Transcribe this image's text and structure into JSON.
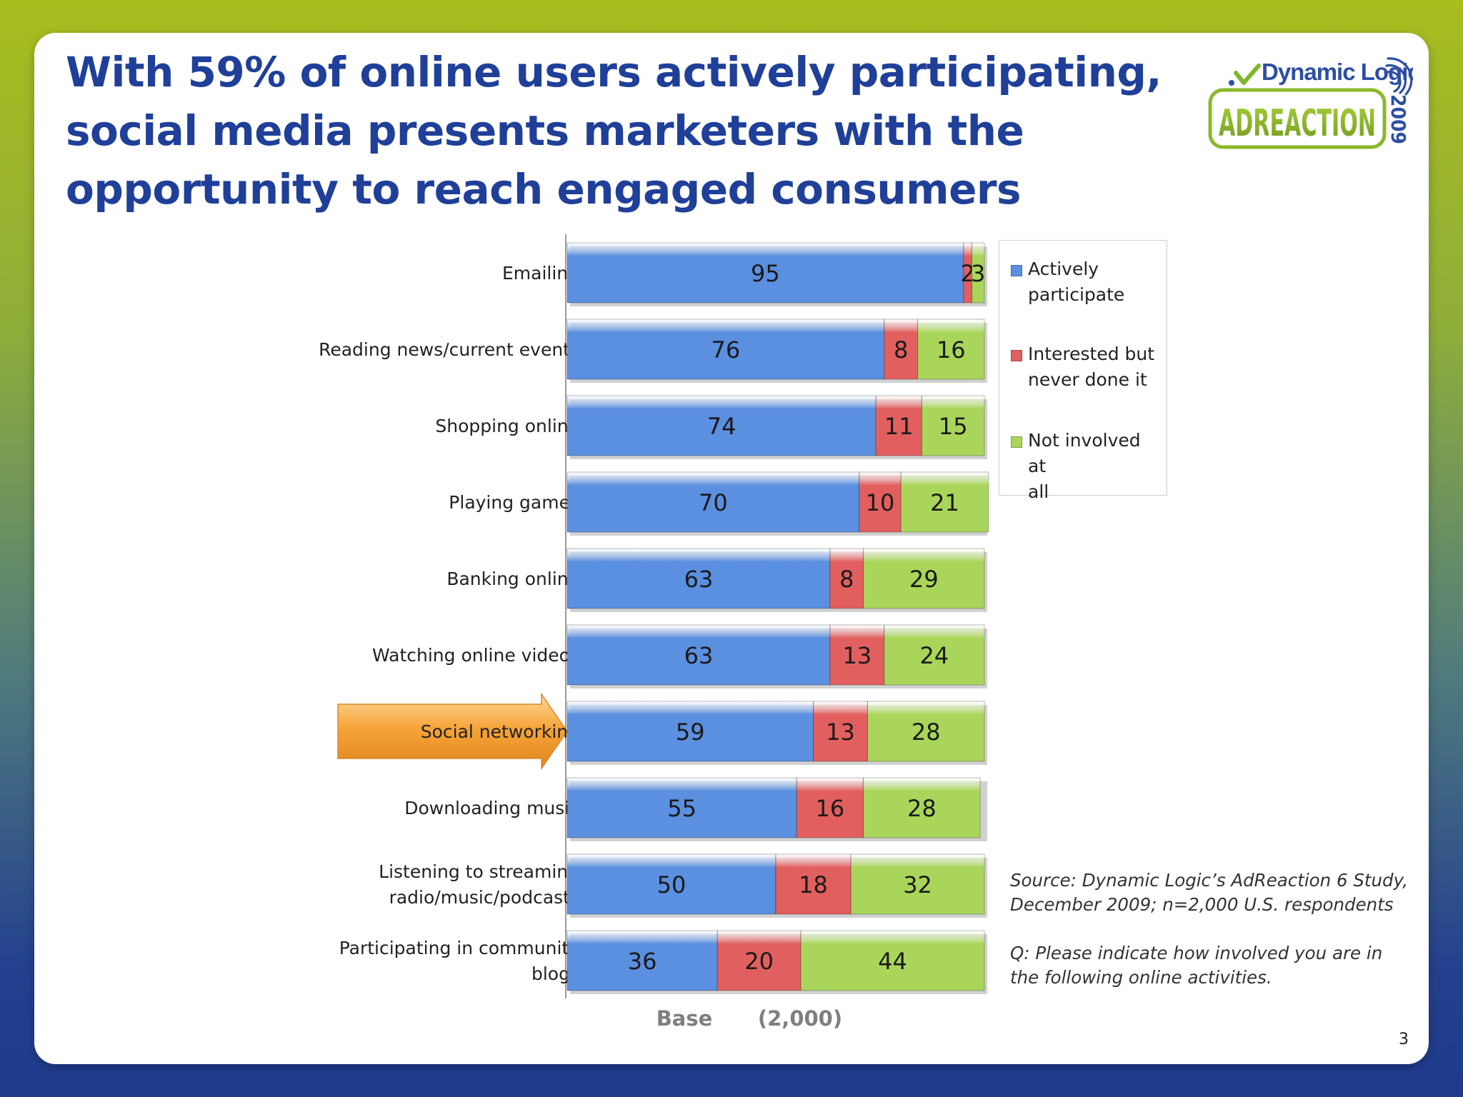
{
  "headline": "With 59% of online users actively participating, social media presents marketers with the opportunity to reach engaged consumers",
  "logo": {
    "brand": "Dynamic Logic",
    "product": "ADREACTION",
    "year": "2009"
  },
  "chart_data": {
    "type": "bar",
    "orientation": "horizontal",
    "stacked": true,
    "categories": [
      "Emailing",
      "Reading news/current events",
      "Shopping online",
      "Playing games",
      "Banking online",
      "Watching online videos",
      "Social networking",
      "Downloading music",
      "Listening to streaming radio/music/podcasts",
      "Participating in community blogs"
    ],
    "category_lines": [
      [
        "Emailing"
      ],
      [
        "Reading news/current events"
      ],
      [
        "Shopping online"
      ],
      [
        "Playing games"
      ],
      [
        "Banking online"
      ],
      [
        "Watching online videos"
      ],
      [
        "Social networking"
      ],
      [
        "Downloading music"
      ],
      [
        "Listening to streaming",
        "radio/music/podcasts"
      ],
      [
        "Participating in community",
        "blogs"
      ]
    ],
    "series": [
      {
        "name": "Actively participate",
        "color": "#5b8fe0",
        "values": [
          95,
          76,
          74,
          70,
          63,
          63,
          59,
          55,
          50,
          36
        ]
      },
      {
        "name": "Interested but never done it",
        "color": "#e25f5f",
        "values": [
          2,
          8,
          11,
          10,
          8,
          13,
          13,
          16,
          18,
          20
        ]
      },
      {
        "name": "Not involved at all",
        "color": "#a9d65a",
        "values": [
          3,
          16,
          15,
          21,
          29,
          24,
          28,
          28,
          32,
          44
        ]
      }
    ],
    "highlighted_category": "Social networking",
    "xlim": [
      0,
      100
    ],
    "legend_position": "right",
    "grid": false
  },
  "legend_lines": [
    [
      "Actively",
      "participate"
    ],
    [
      "Interested but",
      "never done it"
    ],
    [
      "Not involved at",
      "all"
    ]
  ],
  "base": {
    "label": "Base",
    "value": "(2,000)"
  },
  "source_note": "Source: Dynamic Logic’s AdReaction 6 Study, December 2009; n=2,000 U.S. respondents",
  "question_note": "Q: Please indicate how involved you are in the following online activities.",
  "page_number": "3",
  "colors": {
    "headline": "#1f3f99",
    "logo_green": "#8ab82a",
    "arrow_orange": "#f6a53a"
  }
}
